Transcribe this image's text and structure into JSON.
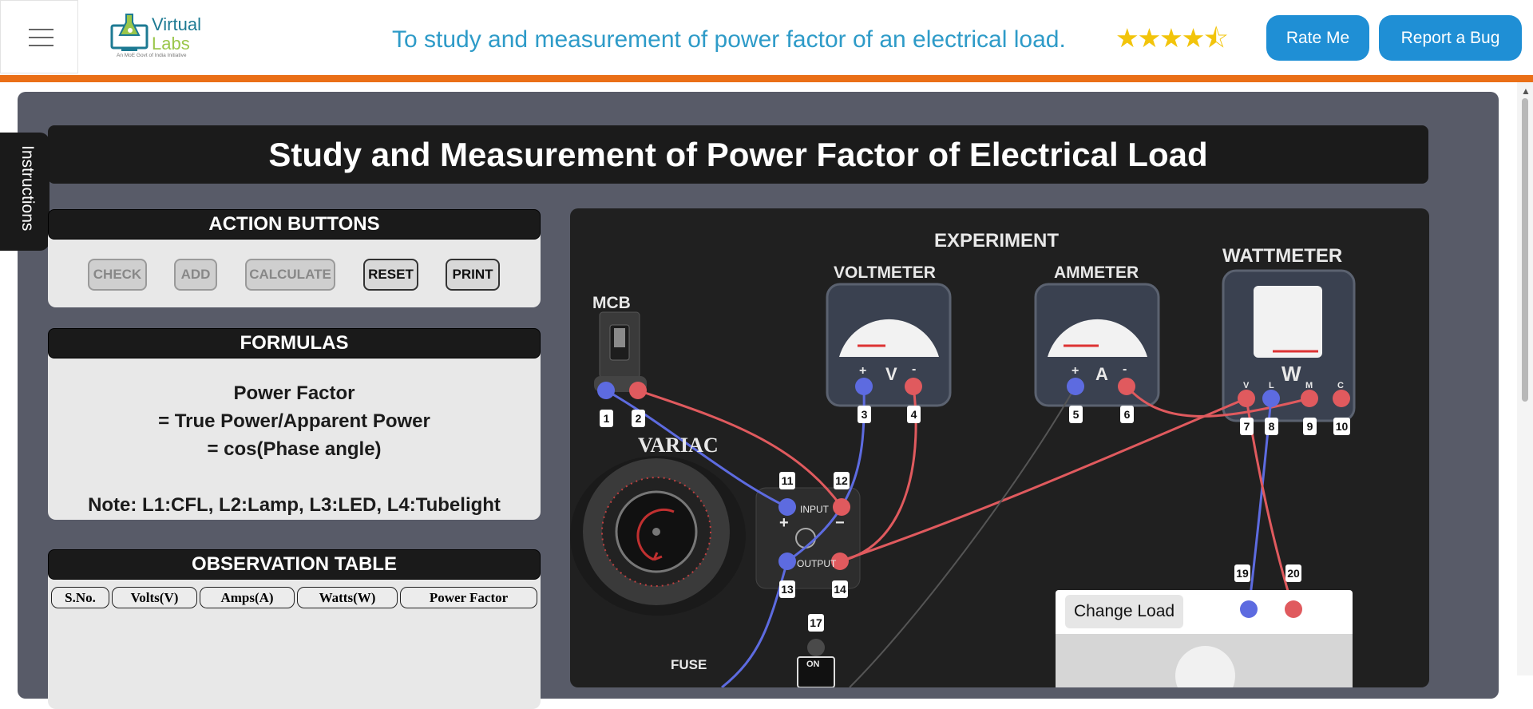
{
  "header": {
    "logo": {
      "line1": "Virtual",
      "line2": "Labs",
      "tagline": "An MoE Govt of India Initiative"
    },
    "title": "To study and measurement of power factor of an electrical load.",
    "rating": "★★★★⯪",
    "rate_button": "Rate Me",
    "bug_button": "Report a Bug"
  },
  "sidebar_tab": {
    "label": "Instructions"
  },
  "simulation": {
    "title": "Study and Measurement of Power Factor of Electrical Load"
  },
  "action_buttons": {
    "heading": "ACTION BUTTONS",
    "check": "CHECK",
    "add": "ADD",
    "calculate": "CALCULATE",
    "reset": "RESET",
    "print": "PRINT"
  },
  "formulas": {
    "heading": "FORMULAS",
    "line1": "Power Factor",
    "line2": "= True Power/Apparent Power",
    "line3": "= cos(Phase angle)",
    "note": "Note: L1:CFL, L2:Lamp, L3:LED, L4:Tubelight"
  },
  "observation_table": {
    "heading": "OBSERVATION TABLE",
    "columns": [
      "S.No.",
      "Volts(V)",
      "Amps(A)",
      "Watts(W)",
      "Power Factor"
    ]
  },
  "experiment": {
    "heading": "EXPERIMENT",
    "voltmeter": {
      "label": "VOLTMETER",
      "symbol": "V",
      "plus": "+",
      "minus": "-"
    },
    "ammeter": {
      "label": "AMMETER",
      "symbol": "A",
      "plus": "+",
      "minus": "-"
    },
    "wattmeter": {
      "label": "WATTMETER",
      "symbol": "W",
      "terminals": [
        "V",
        "L",
        "M",
        "C"
      ]
    },
    "mcb": {
      "label": "MCB"
    },
    "variac": {
      "label": "VARIAC",
      "input": "INPUT",
      "output": "OUTPUT",
      "plus": "+",
      "minus": "−"
    },
    "fuse": {
      "label": "FUSE"
    },
    "switch": {
      "label": "ON"
    },
    "terminal_numbers": [
      "1",
      "2",
      "3",
      "4",
      "5",
      "6",
      "7",
      "8",
      "9",
      "10",
      "11",
      "12",
      "13",
      "14",
      "17",
      "19",
      "20"
    ],
    "change_load_button": "Change Load"
  },
  "colors": {
    "accent_blue": "#1f8fd5",
    "orange_bar": "#ea6f17",
    "title_blue": "#2e9bc8",
    "wire_red": "#e05a5e",
    "wire_blue": "#5d6be0",
    "star_yellow": "#f2c40b"
  }
}
